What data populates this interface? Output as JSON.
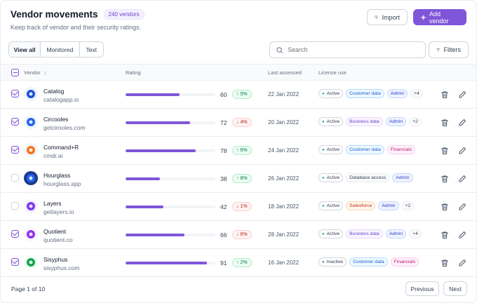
{
  "header": {
    "title": "Vendor movements",
    "count_badge": "240 vendors",
    "subtitle": "Keep track of vendor and their security ratings.",
    "import_label": "Import",
    "add_label": "Add vendor"
  },
  "toolbar": {
    "tabs": [
      "View all",
      "Monitored",
      "Text"
    ],
    "active_tab": "View all",
    "search_placeholder": "Search",
    "filters_label": "Filters"
  },
  "table": {
    "columns": {
      "vendor": "Vendor",
      "rating": "Rating",
      "last_assessed": "Last assessed",
      "license_use": "License use"
    },
    "rows": [
      {
        "name": "Catalog",
        "site": "catalogapp.io",
        "checked": true,
        "logo_color": "#1d4ed8",
        "logo_bg": "#eef2ff",
        "rating": "60",
        "rating_value": 60,
        "delta": "5%",
        "direction": "up",
        "date": "22 Jan 2022",
        "tags": [
          {
            "label": "Active",
            "kind": "active"
          },
          {
            "label": "Customer data",
            "kind": "customer"
          },
          {
            "label": "Admin",
            "kind": "admin"
          },
          {
            "label": "+4",
            "kind": "more"
          }
        ]
      },
      {
        "name": "Circooles",
        "site": "getcirooles.com",
        "checked": true,
        "logo_color": "#2563eb",
        "logo_bg": "#eff6ff",
        "rating": "72",
        "rating_value": 72,
        "delta": "4%",
        "direction": "down",
        "date": "20 Jan 2022",
        "tags": [
          {
            "label": "Active",
            "kind": "active"
          },
          {
            "label": "Business data",
            "kind": "business"
          },
          {
            "label": "Admin",
            "kind": "admin"
          },
          {
            "label": "+2",
            "kind": "more"
          }
        ]
      },
      {
        "name": "Command+R",
        "site": "cmdr.ai",
        "checked": true,
        "logo_color": "#f97316",
        "logo_bg": "#eff6ff",
        "rating": "78",
        "rating_value": 78,
        "delta": "6%",
        "direction": "up",
        "date": "24 Jan 2022",
        "tags": [
          {
            "label": "Active",
            "kind": "active"
          },
          {
            "label": "Customer data",
            "kind": "customer"
          },
          {
            "label": "Financials",
            "kind": "financials"
          }
        ]
      },
      {
        "name": "Hourglass",
        "site": "hourglass.app",
        "checked": false,
        "logo_color": "#2563eb",
        "logo_bg": "#1e3a8a",
        "rating": "38",
        "rating_value": 38,
        "delta": "8%",
        "direction": "up",
        "date": "26 Jan 2022",
        "tags": [
          {
            "label": "Active",
            "kind": "active"
          },
          {
            "label": "Database access",
            "kind": "database"
          },
          {
            "label": "Admin",
            "kind": "admin"
          }
        ]
      },
      {
        "name": "Layers",
        "site": "getlayers.io",
        "checked": false,
        "logo_color": "#7c3aed",
        "logo_bg": "#f5f3ff",
        "rating": "42",
        "rating_value": 42,
        "delta": "1%",
        "direction": "down",
        "date": "18 Jan 2022",
        "tags": [
          {
            "label": "Active",
            "kind": "active"
          },
          {
            "label": "Salesforce",
            "kind": "salesforce"
          },
          {
            "label": "Admin",
            "kind": "admin"
          },
          {
            "label": "+2",
            "kind": "more"
          }
        ]
      },
      {
        "name": "Quotient",
        "site": "quotient.co",
        "checked": true,
        "logo_color": "#9333ea",
        "logo_bg": "#faf5ff",
        "rating": "66",
        "rating_value": 66,
        "delta": "6%",
        "direction": "down",
        "date": "28 Jan 2022",
        "tags": [
          {
            "label": "Active",
            "kind": "active"
          },
          {
            "label": "Business data",
            "kind": "business"
          },
          {
            "label": "Admin",
            "kind": "admin"
          },
          {
            "label": "+4",
            "kind": "more"
          }
        ]
      },
      {
        "name": "Sisyphus",
        "site": "sisyphus.com",
        "checked": true,
        "logo_color": "#16a34a",
        "logo_bg": "#f0fdf4",
        "rating": "91",
        "rating_value": 91,
        "delta": "2%",
        "direction": "up",
        "date": "16 Jan 2022",
        "tags": [
          {
            "label": "Inactive",
            "kind": "inactive"
          },
          {
            "label": "Customer data",
            "kind": "customer"
          },
          {
            "label": "Financials",
            "kind": "financials"
          }
        ]
      }
    ]
  },
  "footer": {
    "page_info": "Page 1 of 10",
    "previous_label": "Previous",
    "next_label": "Next"
  },
  "colors": {
    "accent": "#7f56d9",
    "border": "#eaecf0"
  }
}
